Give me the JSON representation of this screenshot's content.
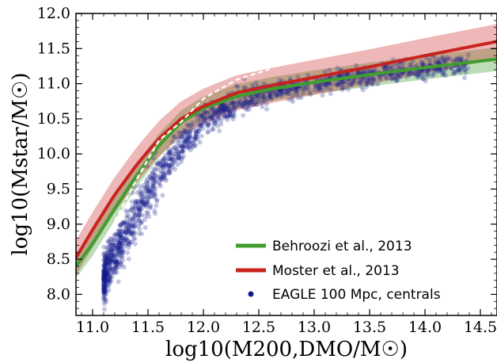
{
  "chart_data": {
    "type": "scatter",
    "xlabel": "log10(M200,DMO/M☉)",
    "ylabel": "log10(Mstar/M☉)",
    "xlim": [
      10.85,
      14.65
    ],
    "ylim": [
      7.7,
      12.0
    ],
    "xticks": [
      "11.0",
      "11.5",
      "12.0",
      "12.5",
      "13.0",
      "13.5",
      "14.0",
      "14.5"
    ],
    "yticks": [
      "8.0",
      "8.5",
      "9.0",
      "9.5",
      "10.0",
      "10.5",
      "11.0",
      "11.5",
      "12.0"
    ],
    "legend_position": "lower-right",
    "series": [
      {
        "name": "Behroozi et al., 2013",
        "color": "#3f9e2e",
        "x": [
          10.85,
          11.0,
          11.2,
          11.4,
          11.6,
          11.8,
          12.0,
          12.3,
          12.6,
          13.0,
          13.5,
          14.0,
          14.65
        ],
        "y": [
          8.4,
          8.72,
          9.22,
          9.7,
          10.12,
          10.45,
          10.65,
          10.82,
          10.92,
          11.02,
          11.13,
          11.23,
          11.35
        ],
        "band": 0.17
      },
      {
        "name": "Moster et al., 2013",
        "color": "#c8231e",
        "x": [
          10.85,
          11.0,
          11.2,
          11.4,
          11.6,
          11.8,
          12.0,
          12.3,
          12.6,
          13.0,
          13.5,
          14.0,
          14.65
        ],
        "y": [
          8.52,
          8.92,
          9.42,
          9.85,
          10.22,
          10.5,
          10.68,
          10.87,
          10.97,
          11.09,
          11.24,
          11.4,
          11.6
        ],
        "band": 0.25
      },
      {
        "name": "EAGLE 100 Mpc, centrals",
        "color": "#131a8a",
        "x_range": [
          11.1,
          14.4
        ],
        "median_x": [
          11.2,
          11.4,
          11.6,
          11.8,
          12.0,
          12.3,
          12.6,
          13.0,
          13.5,
          14.0
        ],
        "median_y": [
          8.55,
          9.15,
          9.7,
          10.12,
          10.45,
          10.72,
          10.87,
          11.0,
          11.12,
          11.22
        ]
      }
    ]
  }
}
